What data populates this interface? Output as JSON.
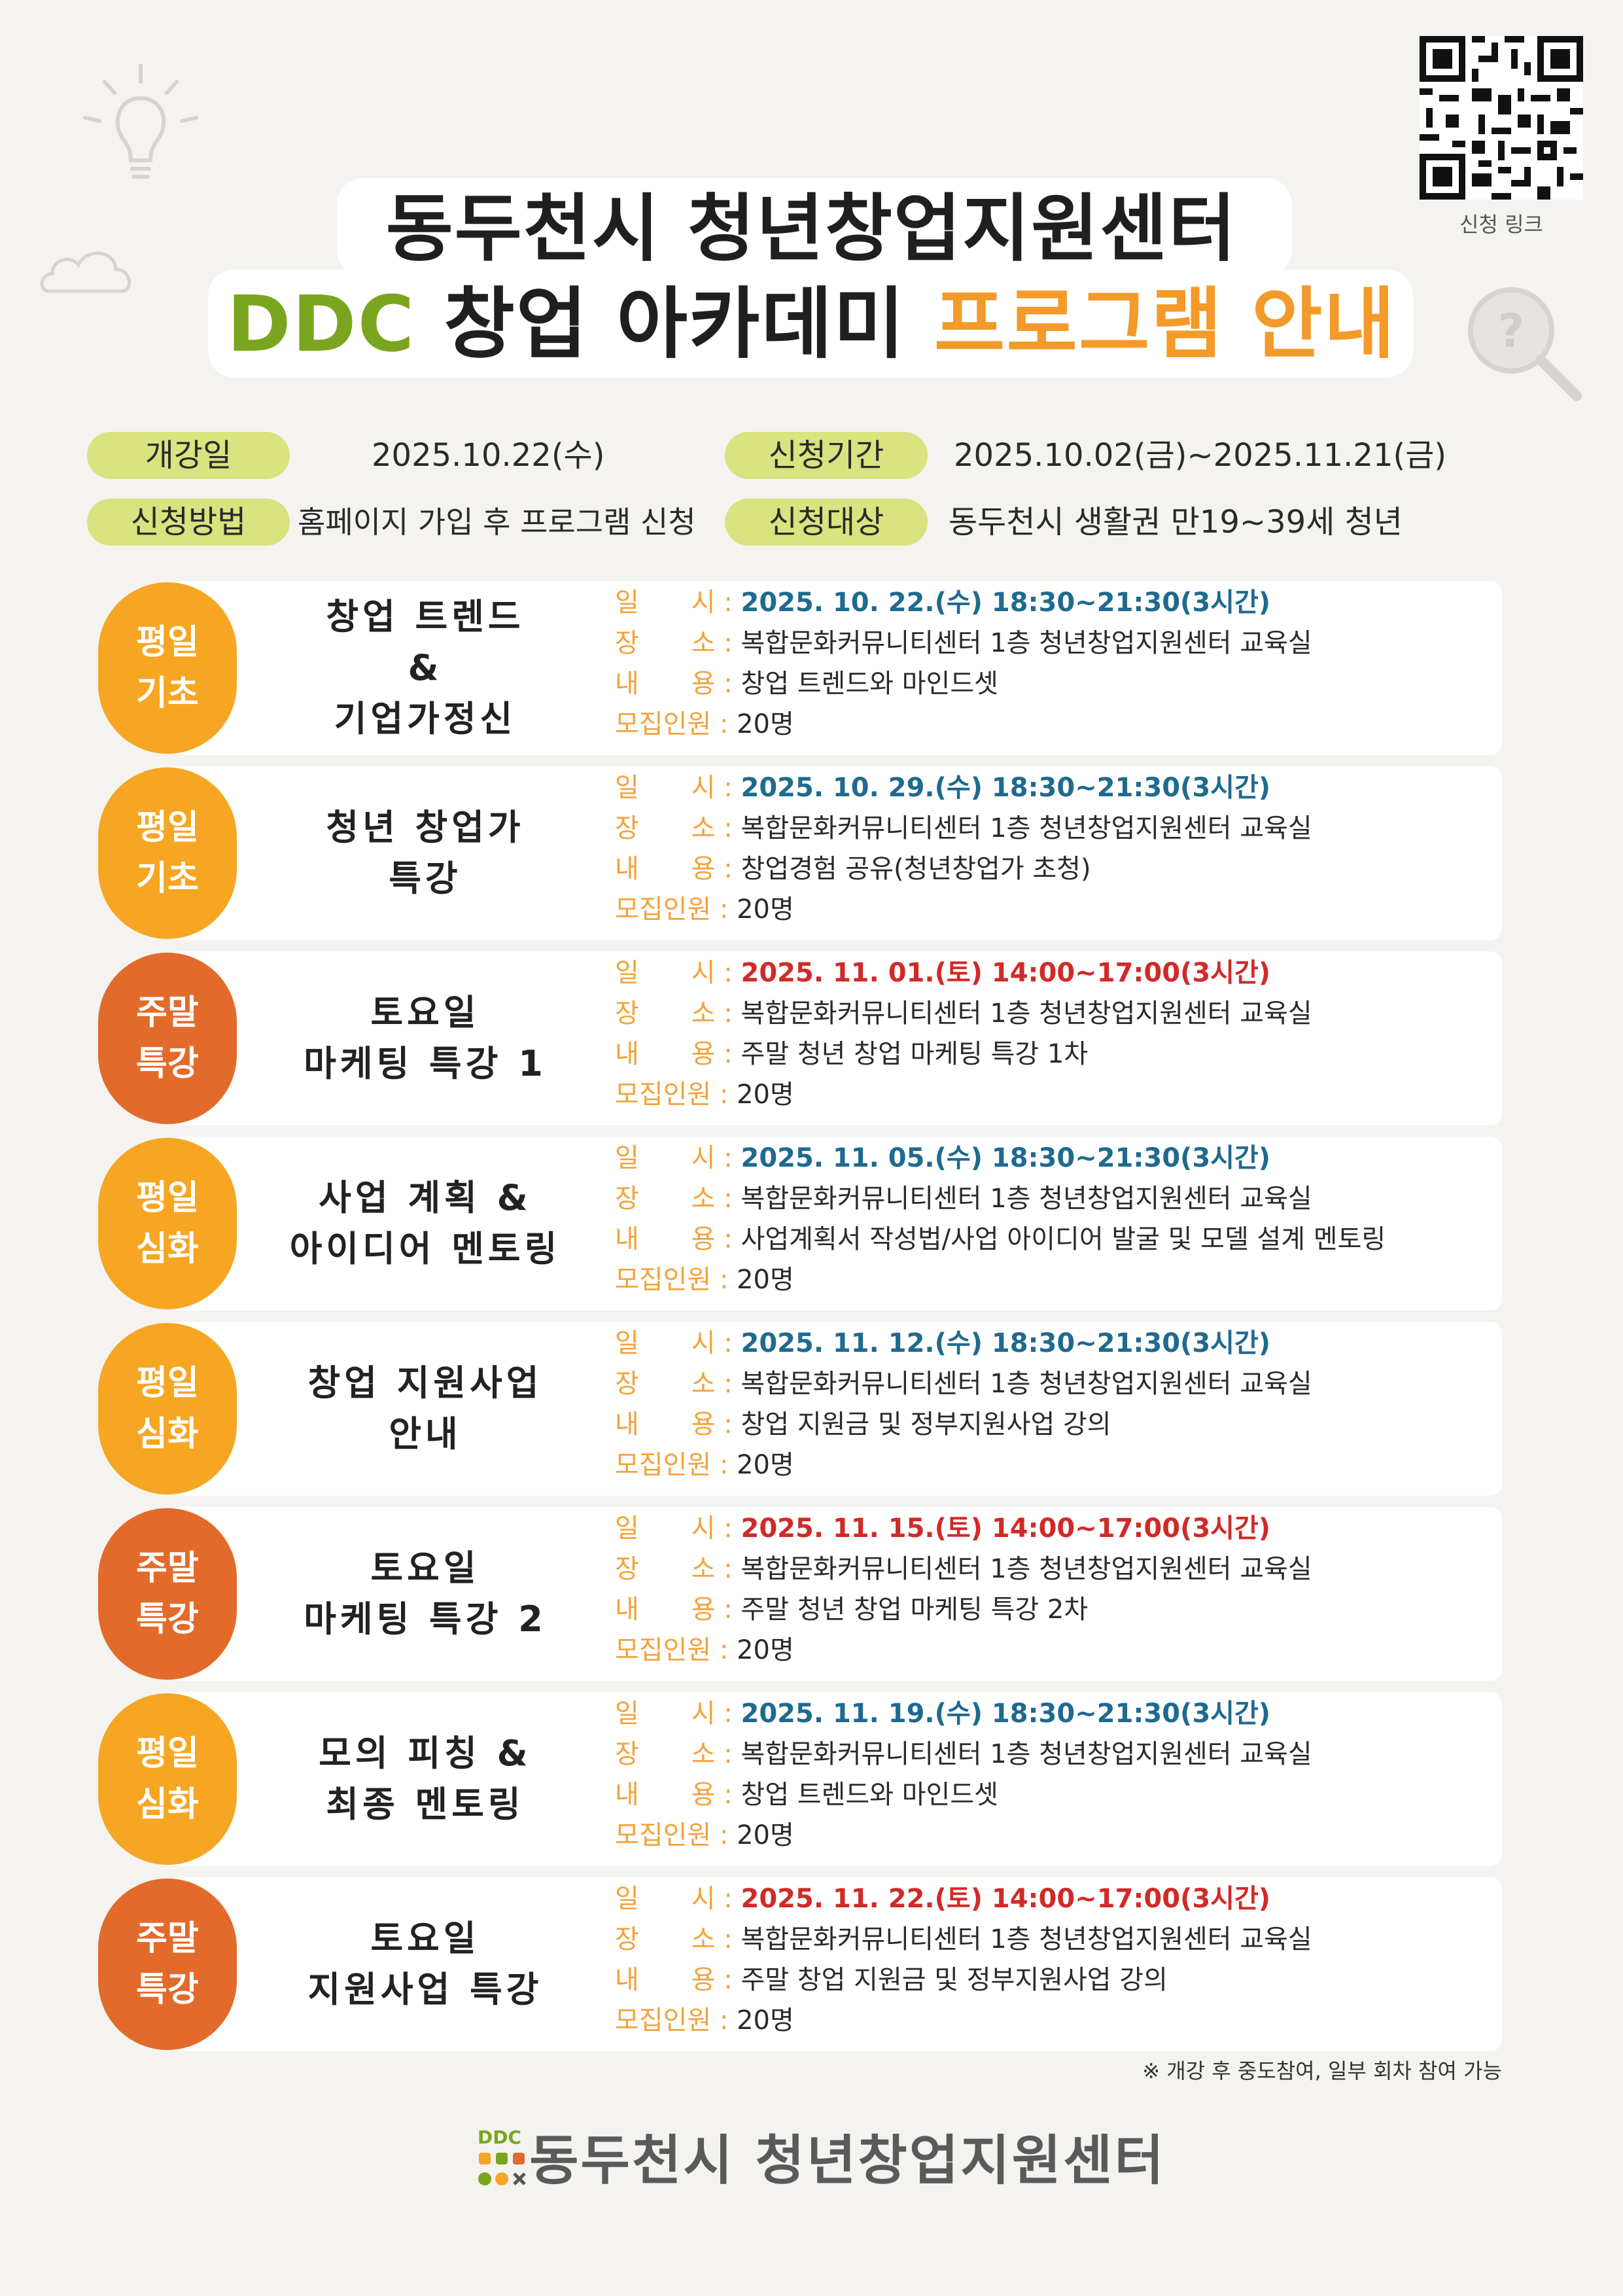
{
  "header": {
    "title_line1": "동두천시 청년창업지원센터",
    "title_line2_green": "DDC",
    "title_line2_black": " 창업 아카데미 ",
    "title_line2_orange": "프로그램 안내",
    "qr_label": "신청 링크"
  },
  "info": {
    "open_label": "개강일",
    "open_value": "2025.10.22(수)",
    "period_label": "신청기간",
    "period_value": "2025.10.02(금)~2025.11.21(금)",
    "method_label": "신청방법",
    "method_value": "홈페이지 가입 후 프로그램 신청",
    "target_label": "신청대상",
    "target_value": "동두천시 생활권 만19~39세 청년"
  },
  "labels": {
    "date": "일　　시 : ",
    "place": "장　　소 : ",
    "content": "내　　용 : ",
    "capacity": "모집인원 : "
  },
  "programs": [
    {
      "badge1": "평일",
      "badge2": "기초",
      "kind": "weekday",
      "title": [
        "창업 트렌드",
        "&",
        "기업가정신"
      ],
      "date": "2025. 10. 22.(수) 18:30~21:30(3시간)",
      "date_color": "blue",
      "place": "복합문화커뮤니티센터 1층 청년창업지원센터 교육실",
      "content": "창업 트렌드와 마인드셋",
      "capacity": "20명"
    },
    {
      "badge1": "평일",
      "badge2": "기초",
      "kind": "weekday",
      "title": [
        "청년 창업가",
        "특강"
      ],
      "date": "2025. 10. 29.(수) 18:30~21:30(3시간)",
      "date_color": "blue",
      "place": "복합문화커뮤니티센터 1층 청년창업지원센터 교육실",
      "content": "창업경험 공유(청년창업가 초청)",
      "capacity": "20명"
    },
    {
      "badge1": "주말",
      "badge2": "특강",
      "kind": "weekend",
      "title": [
        "토요일",
        "마케팅 특강 1"
      ],
      "date": "2025. 11. 01.(토) 14:00~17:00(3시간)",
      "date_color": "red",
      "place": "복합문화커뮤니티센터 1층 청년창업지원센터 교육실",
      "content": "주말 청년 창업 마케팅 특강 1차",
      "capacity": "20명"
    },
    {
      "badge1": "평일",
      "badge2": "심화",
      "kind": "weekday",
      "title": [
        "사업 계획 &",
        "아이디어 멘토링"
      ],
      "date": "2025. 11. 05.(수) 18:30~21:30(3시간)",
      "date_color": "blue",
      "place": "복합문화커뮤니티센터 1층 청년창업지원센터 교육실",
      "content": "사업계획서 작성법/사업 아이디어 발굴 및 모델 설계 멘토링",
      "capacity": "20명"
    },
    {
      "badge1": "평일",
      "badge2": "심화",
      "kind": "weekday",
      "title": [
        "창업 지원사업",
        "안내"
      ],
      "date": "2025. 11. 12.(수) 18:30~21:30(3시간)",
      "date_color": "blue",
      "place": "복합문화커뮤니티센터 1층 청년창업지원센터 교육실",
      "content": "창업 지원금 및 정부지원사업 강의",
      "capacity": "20명"
    },
    {
      "badge1": "주말",
      "badge2": "특강",
      "kind": "weekend",
      "title": [
        "토요일",
        "마케팅 특강 2"
      ],
      "date": "2025. 11. 15.(토) 14:00~17:00(3시간)",
      "date_color": "red",
      "place": "복합문화커뮤니티센터 1층 청년창업지원센터 교육실",
      "content": "주말 청년 창업 마케팅 특강 2차",
      "capacity": "20명"
    },
    {
      "badge1": "평일",
      "badge2": "심화",
      "kind": "weekday",
      "title": [
        "모의 피칭 &",
        "최종 멘토링"
      ],
      "date": "2025. 11. 19.(수) 18:30~21:30(3시간)",
      "date_color": "blue",
      "place": "복합문화커뮤니티센터 1층 청년창업지원센터 교육실",
      "content": "창업 트렌드와 마인드셋",
      "capacity": "20명"
    },
    {
      "badge1": "주말",
      "badge2": "특강",
      "kind": "weekend",
      "title": [
        "토요일",
        "지원사업 특강"
      ],
      "date": "2025. 11. 22.(토) 14:00~17:00(3시간)",
      "date_color": "red",
      "place": "복합문화커뮤니티센터 1층 청년창업지원센터 교육실",
      "content": "주말 창업 지원금 및 정부지원사업 강의",
      "capacity": "20명"
    }
  ],
  "note": "※ 개강 후 중도참여, 일부 회차 참여 가능",
  "footer": {
    "logo_text": "DDC",
    "name": "동두천시 청년창업지원센터"
  },
  "colors": {
    "background": "#f4f3f0",
    "green": "#7aa51f",
    "orange": "#f6a623",
    "tag": "#d9e37f",
    "weekend": "#e26b2b",
    "date_blue": "#1f6a8f",
    "date_red": "#d02a28"
  }
}
